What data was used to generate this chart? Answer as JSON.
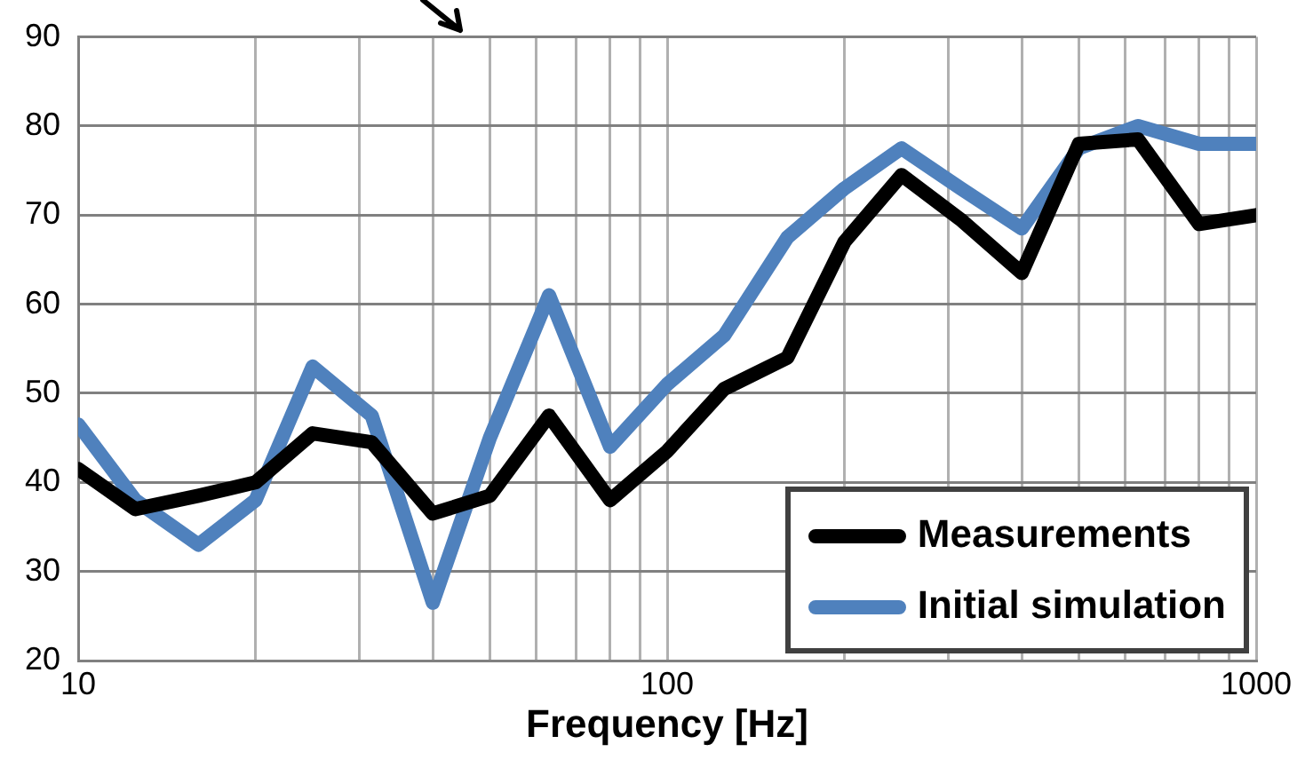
{
  "chart_data": {
    "type": "line",
    "xlabel": "Frequency [Hz]",
    "log": "x",
    "grid": true,
    "legend": "bottom right",
    "marker": "none",
    "line_style": "solid",
    "x": [
      10,
      12.5,
      16,
      20,
      25,
      31.5,
      40,
      50,
      63,
      80,
      100,
      125,
      160,
      200,
      250,
      315,
      400,
      500,
      630,
      800,
      1000
    ],
    "series": [
      {
        "name": "Measurements",
        "color": "#000000",
        "values": [
          41.5,
          37,
          38.5,
          40,
          45.5,
          44.5,
          36.5,
          38.5,
          47.5,
          38,
          43.5,
          50.5,
          54,
          67,
          74.5,
          69.5,
          63.5,
          78,
          78.5,
          69,
          70
        ]
      },
      {
        "name": "Initial simulation",
        "color": "#4f81bd",
        "values": [
          46.5,
          38,
          33,
          38,
          53,
          47.5,
          26.5,
          45,
          61,
          44,
          51,
          56.5,
          67.5,
          73,
          77.5,
          73,
          68.5,
          77.5,
          80,
          78,
          78
        ]
      }
    ],
    "xlim": [
      10,
      1000
    ],
    "xticks": [
      10,
      {
        "value": 20,
        "label": null
      },
      {
        "value": 30,
        "label": null
      },
      {
        "value": 40,
        "label": null
      },
      {
        "value": 50,
        "label": null
      },
      {
        "value": 60,
        "label": null
      },
      {
        "value": 70,
        "label": null
      },
      {
        "value": 80,
        "label": null
      },
      {
        "value": 90,
        "label": null
      },
      100,
      {
        "value": 200,
        "label": null
      },
      {
        "value": 300,
        "label": null
      },
      {
        "value": 400,
        "label": null
      },
      {
        "value": 500,
        "label": null
      },
      {
        "value": 600,
        "label": null
      },
      {
        "value": 700,
        "label": null
      },
      {
        "value": 800,
        "label": null
      },
      {
        "value": 900,
        "label": null
      },
      1000
    ],
    "ylim": [
      20,
      90
    ],
    "yticks": [
      20,
      30,
      40,
      50,
      60,
      70,
      80,
      90
    ]
  }
}
